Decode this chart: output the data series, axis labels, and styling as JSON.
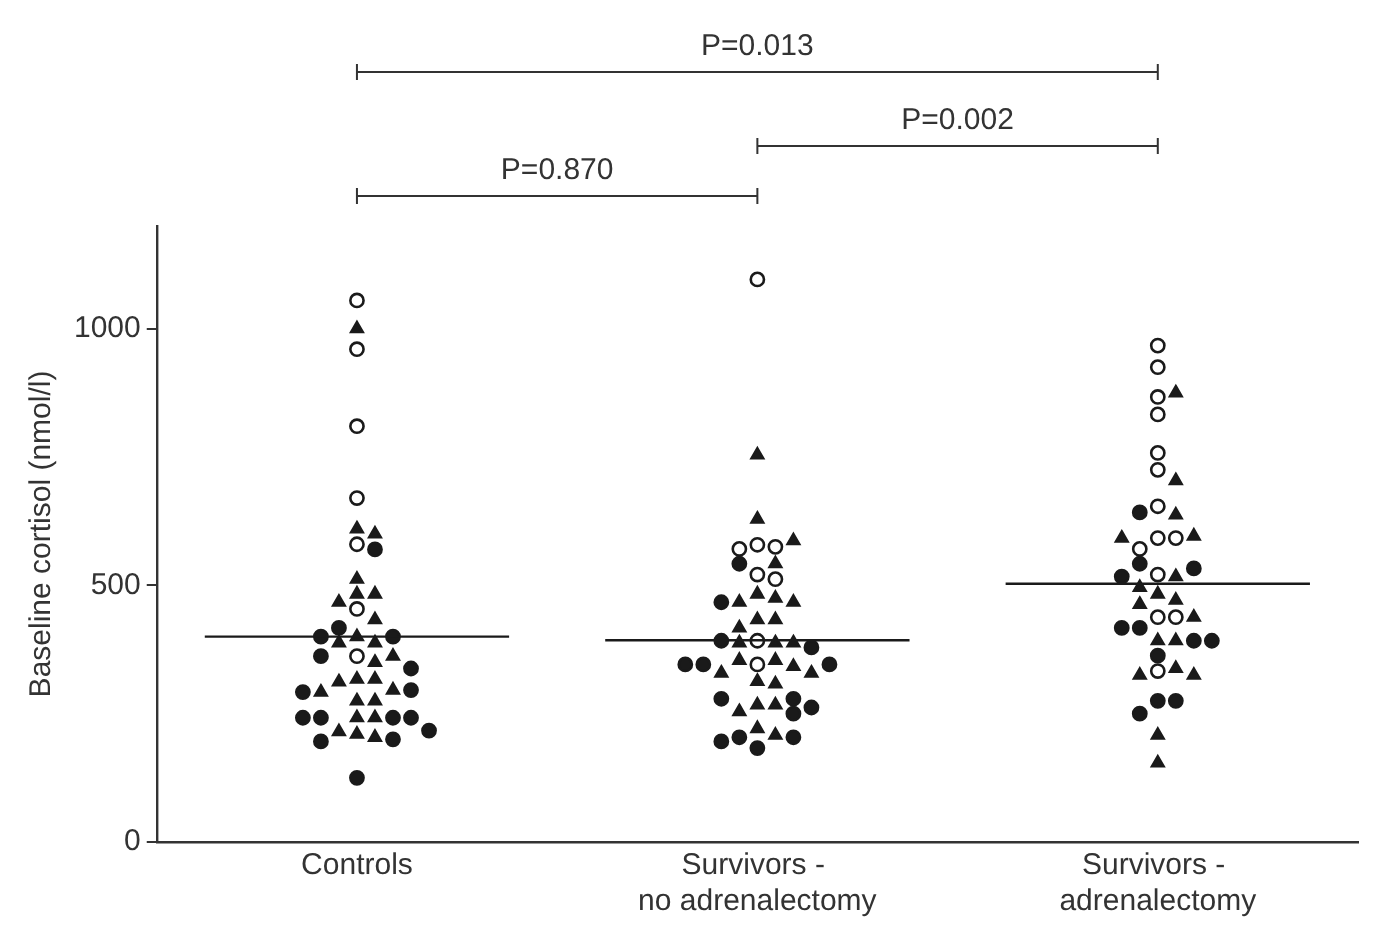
{
  "chart_data": {
    "type": "scatter",
    "categories": [
      "Controls",
      "Survivors - no adrenalectomy",
      "Survivors - adrenalectomy"
    ],
    "ylabel": "Baseline cortisol (nmol/l)",
    "ylim": [
      0,
      1200
    ],
    "yticks": [
      0,
      500,
      1000
    ],
    "grid": false,
    "legend": false,
    "annotations": [
      "P=0.013",
      "P=0.002",
      "P=0.870"
    ],
    "series": [
      {
        "type": "scatter",
        "marker": "circle",
        "color": "#ffffff",
        "x": [
          "Controls",
          "Controls",
          "Controls",
          "Controls",
          "Controls",
          "Controls",
          "Controls",
          "Survivors - no adrenalectomy",
          "Survivors - no adrenalectomy",
          "Survivors - no adrenalectomy",
          "Survivors - no adrenalectomy",
          "Survivors - no adrenalectomy",
          "Survivors - no adrenalectomy",
          "Survivors - no adrenalectomy",
          "Survivors - no adrenalectomy",
          "Survivors - adrenalectomy",
          "Survivors - adrenalectomy",
          "Survivors - adrenalectomy",
          "Survivors - adrenalectomy",
          "Survivors - adrenalectomy",
          "Survivors - adrenalectomy",
          "Survivors - adrenalectomy",
          "Survivors - adrenalectomy",
          "Survivors - adrenalectomy",
          "Survivors - adrenalectomy",
          "Survivors - adrenalectomy",
          "Survivors - adrenalectomy",
          "Survivors - adrenalectomy",
          "Survivors - adrenalectomy"
        ],
        "values": [
          1055,
          960,
          810,
          670,
          580,
          454,
          362,
          1096,
          579,
          575,
          571,
          521,
          512,
          392,
          346,
          967,
          925,
          867,
          833,
          758,
          725,
          654,
          592,
          592,
          571,
          521,
          438,
          438,
          333
        ]
      },
      {
        "type": "scatter",
        "marker": "triangle",
        "color": "#1a1a1a",
        "x": [
          "Controls",
          "Controls",
          "Controls",
          "Controls",
          "Controls",
          "Controls",
          "Controls",
          "Controls",
          "Controls",
          "Controls",
          "Controls",
          "Controls",
          "Controls",
          "Controls",
          "Controls",
          "Controls",
          "Controls",
          "Controls",
          "Controls",
          "Controls",
          "Controls",
          "Controls",
          "Controls",
          "Controls",
          "Controls",
          "Survivors - no adrenalectomy",
          "Survivors - no adrenalectomy",
          "Survivors - no adrenalectomy",
          "Survivors - no adrenalectomy",
          "Survivors - no adrenalectomy",
          "Survivors - no adrenalectomy",
          "Survivors - no adrenalectomy",
          "Survivors - no adrenalectomy",
          "Survivors - no adrenalectomy",
          "Survivors - no adrenalectomy",
          "Survivors - no adrenalectomy",
          "Survivors - no adrenalectomy",
          "Survivors - no adrenalectomy",
          "Survivors - no adrenalectomy",
          "Survivors - no adrenalectomy",
          "Survivors - no adrenalectomy",
          "Survivors - no adrenalectomy",
          "Survivors - no adrenalectomy",
          "Survivors - no adrenalectomy",
          "Survivors - no adrenalectomy",
          "Survivors - no adrenalectomy",
          "Survivors - no adrenalectomy",
          "Survivors - no adrenalectomy",
          "Survivors - no adrenalectomy",
          "Survivors - no adrenalectomy",
          "Survivors - no adrenalectomy",
          "Survivors - adrenalectomy",
          "Survivors - adrenalectomy",
          "Survivors - adrenalectomy",
          "Survivors - adrenalectomy",
          "Survivors - adrenalectomy",
          "Survivors - adrenalectomy",
          "Survivors - adrenalectomy",
          "Survivors - adrenalectomy",
          "Survivors - adrenalectomy",
          "Survivors - adrenalectomy",
          "Survivors - adrenalectomy",
          "Survivors - adrenalectomy",
          "Survivors - adrenalectomy",
          "Survivors - adrenalectomy",
          "Survivors - adrenalectomy",
          "Survivors - adrenalectomy",
          "Survivors - adrenalectomy",
          "Survivors - adrenalectomy"
        ],
        "values": [
          1000,
          610,
          600,
          512,
          483,
          483,
          467,
          433,
          400,
          388,
          388,
          362,
          350,
          317,
          317,
          312,
          296,
          292,
          275,
          275,
          242,
          242,
          215,
          210,
          204,
          754,
          629,
          587,
          542,
          483,
          475,
          467,
          467,
          433,
          433,
          417,
          388,
          388,
          388,
          354,
          354,
          342,
          329,
          329,
          313,
          308,
          267,
          267,
          254,
          221,
          208,
          875,
          704,
          637,
          596,
          592,
          517,
          496,
          483,
          471,
          463,
          438,
          392,
          392,
          338,
          325,
          325,
          208,
          154
        ]
      },
      {
        "type": "scatter",
        "marker": "circle",
        "color": "#1a1a1a",
        "x": [
          "Controls",
          "Controls",
          "Controls",
          "Controls",
          "Controls",
          "Controls",
          "Controls",
          "Controls",
          "Controls",
          "Controls",
          "Controls",
          "Controls",
          "Controls",
          "Controls",
          "Controls",
          "Controls",
          "Survivors - no adrenalectomy",
          "Survivors - no adrenalectomy",
          "Survivors - no adrenalectomy",
          "Survivors - no adrenalectomy",
          "Survivors - no adrenalectomy",
          "Survivors - no adrenalectomy",
          "Survivors - no adrenalectomy",
          "Survivors - no adrenalectomy",
          "Survivors - no adrenalectomy",
          "Survivors - no adrenalectomy",
          "Survivors - no adrenalectomy",
          "Survivors - no adrenalectomy",
          "Survivors - no adrenalectomy",
          "Survivors - no adrenalectomy",
          "Survivors - no adrenalectomy",
          "Survivors - adrenalectomy",
          "Survivors - adrenalectomy",
          "Survivors - adrenalectomy",
          "Survivors - adrenalectomy",
          "Survivors - adrenalectomy",
          "Survivors - adrenalectomy",
          "Survivors - adrenalectomy",
          "Survivors - adrenalectomy",
          "Survivors - adrenalectomy",
          "Survivors - adrenalectomy",
          "Survivors - adrenalectomy",
          "Survivors - adrenalectomy"
        ],
        "values": [
          570,
          417,
          400,
          400,
          362,
          338,
          296,
          292,
          242,
          242,
          242,
          242,
          217,
          200,
          196,
          125,
          542,
          467,
          392,
          379,
          346,
          346,
          346,
          279,
          279,
          262,
          250,
          204,
          204,
          196,
          183,
          642,
          542,
          533,
          517,
          417,
          417,
          392,
          392,
          363,
          275,
          275,
          250
        ]
      },
      {
        "type": "box",
        "color": "#1a1a1a",
        "boxes": [
          {
            "low": 400,
            "q1": 400,
            "median": 400,
            "q3": 400,
            "high": 400
          },
          {
            "low": 393,
            "q1": 393,
            "median": 393,
            "q3": 393,
            "high": 393
          },
          {
            "low": 503,
            "q1": 503,
            "median": 503,
            "q3": 503,
            "high": 503
          }
        ]
      }
    ]
  }
}
